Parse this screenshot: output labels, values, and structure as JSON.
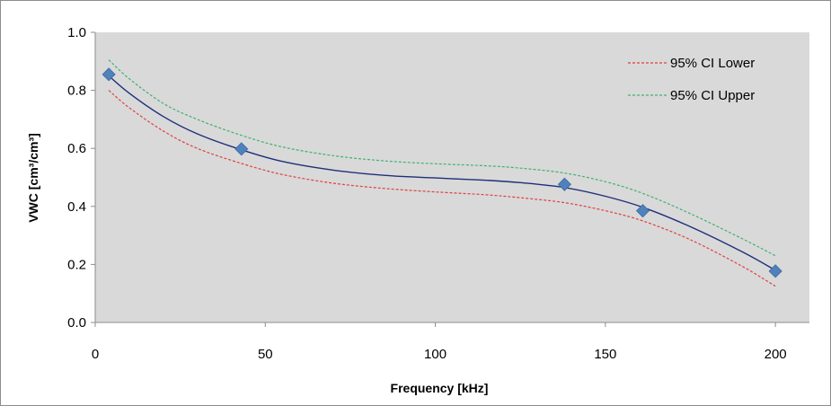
{
  "chart_data": {
    "type": "scatter",
    "title": "",
    "xlabel": "Frequency [kHz]",
    "ylabel": "VWC [cm³/cm³]",
    "xlim": [
      0,
      210
    ],
    "ylim": [
      0,
      1.0
    ],
    "x_ticks": [
      "0",
      "50",
      "100",
      "150",
      "200"
    ],
    "y_ticks": [
      "0.0",
      "0.2",
      "0.4",
      "0.6",
      "0.8",
      "1.0"
    ],
    "grid": false,
    "legend_position": "top-right",
    "series": [
      {
        "kind": "points",
        "color": "#4f81bd",
        "marker": "diamond",
        "x": [
          4,
          43,
          138,
          161,
          200
        ],
        "y": [
          0.855,
          0.598,
          0.476,
          0.385,
          0.177
        ]
      },
      {
        "kind": "fit",
        "color": "#1f2f7a",
        "x": [
          4,
          10,
          20,
          30,
          43,
          55,
          70,
          85,
          100,
          115,
          125,
          138,
          150,
          161,
          175,
          190,
          200
        ],
        "y": [
          0.85,
          0.79,
          0.71,
          0.65,
          0.595,
          0.555,
          0.525,
          0.507,
          0.498,
          0.49,
          0.482,
          0.465,
          0.435,
          0.397,
          0.33,
          0.245,
          0.18
        ]
      },
      {
        "name": "95% CI Lower",
        "kind": "ci",
        "color": "#e04040",
        "dashed": true,
        "x": [
          4,
          10,
          20,
          30,
          43,
          55,
          70,
          85,
          100,
          115,
          125,
          138,
          150,
          161,
          175,
          190,
          200
        ],
        "y": [
          0.8,
          0.74,
          0.66,
          0.6,
          0.548,
          0.51,
          0.48,
          0.462,
          0.45,
          0.44,
          0.43,
          0.413,
          0.385,
          0.35,
          0.285,
          0.195,
          0.125
        ]
      },
      {
        "name": "95% CI Upper",
        "kind": "ci",
        "color": "#3cb371",
        "dashed": true,
        "x": [
          4,
          10,
          20,
          30,
          43,
          55,
          70,
          85,
          100,
          115,
          125,
          138,
          150,
          161,
          175,
          190,
          200
        ],
        "y": [
          0.905,
          0.84,
          0.755,
          0.7,
          0.645,
          0.605,
          0.575,
          0.557,
          0.547,
          0.54,
          0.532,
          0.515,
          0.485,
          0.445,
          0.375,
          0.29,
          0.23
        ]
      }
    ]
  }
}
